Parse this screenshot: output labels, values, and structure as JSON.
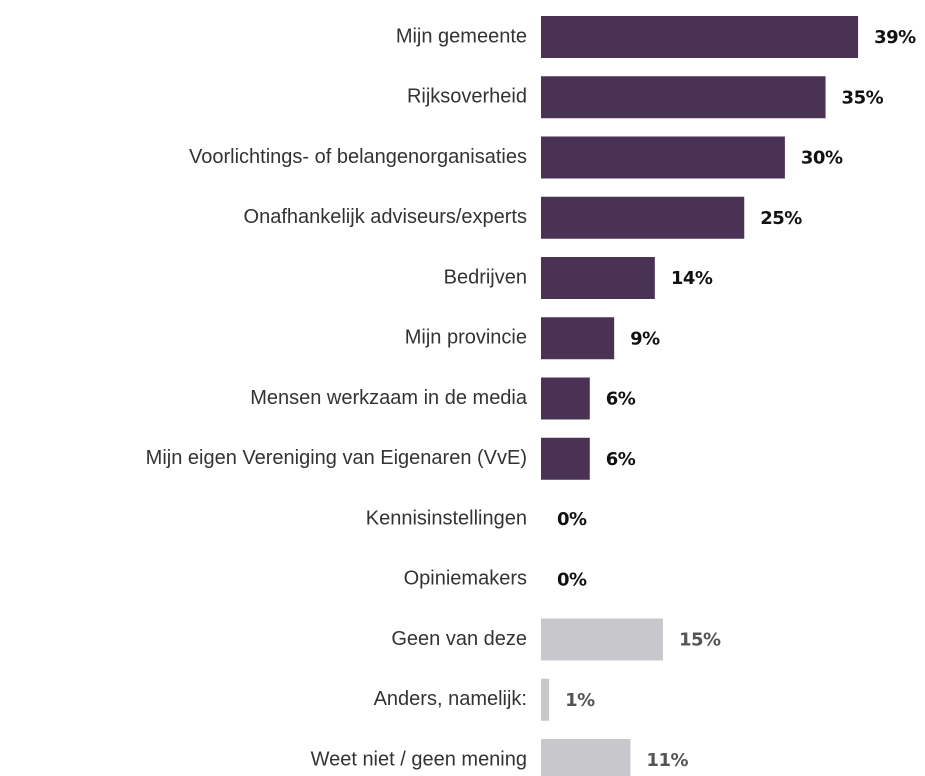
{
  "chart_data": {
    "type": "barh",
    "categories": [
      "Mijn gemeente",
      "Rijksoverheid",
      "Voorlichtings- of belangenorganisaties",
      "Onafhankelijk adviseurs/experts",
      "Bedrijven",
      "Mijn provincie",
      "Mensen werkzaam in de media",
      "Mijn eigen Vereniging van Eigenaren (VvE)",
      "Kennisinstellingen",
      "Opiniemakers",
      "Geen van deze",
      "Anders, namelijk:",
      "Weet niet / geen mening"
    ],
    "values": [
      39,
      35,
      30,
      25,
      14,
      9,
      6,
      6,
      0,
      0,
      15,
      1,
      11
    ],
    "value_labels": [
      "39%",
      "35%",
      "30%",
      "25%",
      "14%",
      "9%",
      "6%",
      "6%",
      "0%",
      "0%",
      "15%",
      "1%",
      "11%"
    ],
    "colors": [
      "#4a3254",
      "#4a3254",
      "#4a3254",
      "#4a3254",
      "#4a3254",
      "#4a3254",
      "#4a3254",
      "#4a3254",
      "#4a3254",
      "#4a3254",
      "#c8c7cc",
      "#c8c7cc",
      "#c8c7cc"
    ],
    "label_colors": [
      "#111111",
      "#111111",
      "#111111",
      "#111111",
      "#111111",
      "#111111",
      "#111111",
      "#111111",
      "#111111",
      "#111111",
      "#555555",
      "#555555",
      "#555555"
    ]
  }
}
